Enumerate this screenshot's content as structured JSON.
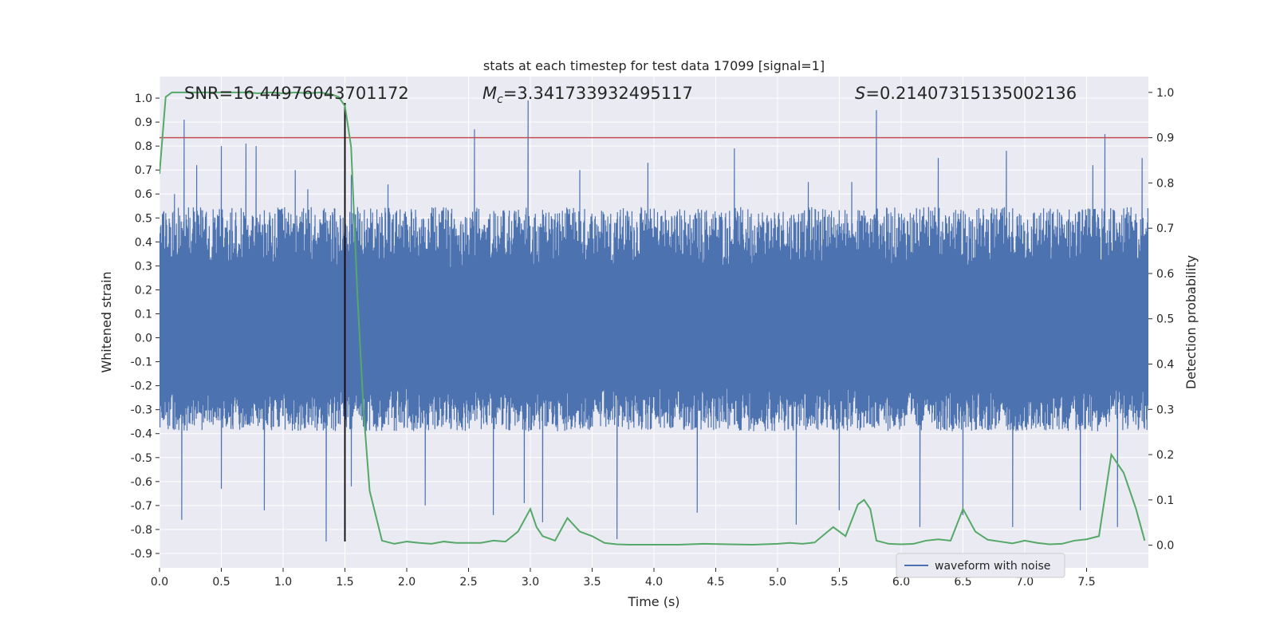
{
  "chart_data": {
    "type": "line",
    "title": "stats at each timestep for test data 17099 [signal=1]",
    "xlabel": "Time (s)",
    "ylabel": "Whitened strain",
    "y2label": "Detection probability",
    "xlim": [
      0.0,
      8.0
    ],
    "ylim": [
      -0.96,
      1.09
    ],
    "y2lim": [
      -0.05,
      1.035
    ],
    "xticks": [
      "0.0",
      "0.5",
      "1.0",
      "1.5",
      "2.0",
      "2.5",
      "3.0",
      "3.5",
      "4.0",
      "4.5",
      "5.0",
      "5.5",
      "6.0",
      "6.5",
      "7.0",
      "7.5"
    ],
    "xtick_values": [
      0.0,
      0.5,
      1.0,
      1.5,
      2.0,
      2.5,
      3.0,
      3.5,
      4.0,
      4.5,
      5.0,
      5.5,
      6.0,
      6.5,
      7.0,
      7.5
    ],
    "yticks": [
      "1.0",
      "0.9",
      "0.8",
      "0.7",
      "0.6",
      "0.5",
      "0.4",
      "0.3",
      "0.2",
      "0.1",
      "0.0",
      "-0.1",
      "-0.2",
      "-0.3",
      "-0.4",
      "-0.5",
      "-0.6",
      "-0.7",
      "-0.8",
      "-0.9"
    ],
    "ytick_values": [
      1.0,
      0.9,
      0.8,
      0.7,
      0.6,
      0.5,
      0.4,
      0.3,
      0.2,
      0.1,
      0.0,
      -0.1,
      -0.2,
      -0.3,
      -0.4,
      -0.5,
      -0.6,
      -0.7,
      -0.8,
      -0.9
    ],
    "y2ticks": [
      "1.0",
      "0.9",
      "0.8",
      "0.7",
      "0.6",
      "0.5",
      "0.4",
      "0.3",
      "0.2",
      "0.1",
      "0.0"
    ],
    "y2tick_values": [
      1.0,
      0.9,
      0.8,
      0.7,
      0.6,
      0.5,
      0.4,
      0.3,
      0.2,
      0.1,
      0.0
    ],
    "grid": true,
    "legend": {
      "placement": "lower-right",
      "entries": [
        "waveform with noise"
      ]
    },
    "annotations": {
      "snr": "SNR=16.44976043701172",
      "mc_symbol": "M",
      "mc_subscript": "c",
      "mc_value": "=3.341733932495117",
      "s_symbol": "S",
      "s_value": "=0.21407315135002136"
    },
    "threshold": {
      "value": 0.9,
      "axis": "y2",
      "color": "#c44e52"
    },
    "vline": {
      "x": 1.5,
      "ymin": -0.85,
      "ymax": 0.98,
      "color": "#000000"
    },
    "waveform": {
      "name": "waveform with noise",
      "color": "#4c72b0",
      "sample_count": 2048,
      "duration": 8.0,
      "typical_upper": 0.42,
      "typical_lower": -0.3,
      "spikes_up": [
        [
          0.05,
          0.52
        ],
        [
          0.12,
          0.6
        ],
        [
          0.2,
          0.91
        ],
        [
          0.3,
          0.72
        ],
        [
          0.5,
          0.8
        ],
        [
          0.7,
          0.81
        ],
        [
          0.78,
          0.8
        ],
        [
          1.1,
          0.7
        ],
        [
          1.2,
          0.62
        ],
        [
          1.55,
          0.68
        ],
        [
          1.85,
          0.64
        ],
        [
          2.55,
          0.87
        ],
        [
          2.98,
          0.99
        ],
        [
          3.4,
          0.7
        ],
        [
          3.95,
          0.73
        ],
        [
          4.65,
          0.79
        ],
        [
          5.25,
          0.65
        ],
        [
          5.6,
          0.65
        ],
        [
          5.8,
          0.95
        ],
        [
          6.3,
          0.75
        ],
        [
          6.85,
          0.78
        ],
        [
          7.55,
          0.72
        ],
        [
          7.65,
          0.85
        ],
        [
          7.95,
          0.75
        ]
      ],
      "spikes_down": [
        [
          0.18,
          -0.76
        ],
        [
          0.5,
          -0.63
        ],
        [
          0.85,
          -0.72
        ],
        [
          1.35,
          -0.85
        ],
        [
          1.55,
          -0.62
        ],
        [
          2.15,
          -0.7
        ],
        [
          2.7,
          -0.74
        ],
        [
          2.95,
          -0.69
        ],
        [
          3.1,
          -0.77
        ],
        [
          3.7,
          -0.84
        ],
        [
          4.35,
          -0.73
        ],
        [
          5.15,
          -0.78
        ],
        [
          5.5,
          -0.72
        ],
        [
          6.15,
          -0.79
        ],
        [
          6.5,
          -0.74
        ],
        [
          6.9,
          -0.79
        ],
        [
          7.45,
          -0.72
        ],
        [
          7.75,
          -0.79
        ]
      ]
    },
    "probability": {
      "name": "Detection probability",
      "color": "#55a868",
      "x": [
        0.0,
        0.05,
        0.1,
        0.2,
        0.3,
        0.4,
        0.5,
        0.6,
        0.7,
        0.8,
        0.9,
        1.0,
        1.1,
        1.2,
        1.3,
        1.4,
        1.45,
        1.5,
        1.55,
        1.6,
        1.65,
        1.7,
        1.8,
        1.9,
        2.0,
        2.1,
        2.2,
        2.3,
        2.4,
        2.5,
        2.6,
        2.7,
        2.8,
        2.9,
        3.0,
        3.05,
        3.1,
        3.2,
        3.3,
        3.4,
        3.5,
        3.6,
        3.7,
        3.8,
        4.0,
        4.2,
        4.4,
        4.6,
        4.8,
        5.0,
        5.1,
        5.2,
        5.3,
        5.45,
        5.55,
        5.65,
        5.7,
        5.75,
        5.8,
        5.9,
        6.0,
        6.1,
        6.2,
        6.3,
        6.4,
        6.5,
        6.6,
        6.7,
        6.8,
        6.9,
        7.0,
        7.1,
        7.2,
        7.3,
        7.4,
        7.5,
        7.6,
        7.7,
        7.8,
        7.9,
        7.97
      ],
      "y": [
        0.82,
        0.99,
        1.0,
        1.0,
        1.0,
        1.0,
        1.0,
        1.0,
        1.0,
        0.998,
        1.0,
        0.998,
        1.0,
        0.998,
        1.0,
        0.995,
        0.99,
        0.97,
        0.88,
        0.56,
        0.3,
        0.12,
        0.01,
        0.003,
        0.008,
        0.005,
        0.003,
        0.008,
        0.005,
        0.005,
        0.005,
        0.01,
        0.008,
        0.03,
        0.08,
        0.04,
        0.02,
        0.01,
        0.06,
        0.03,
        0.02,
        0.005,
        0.002,
        0.001,
        0.001,
        0.001,
        0.003,
        0.002,
        0.001,
        0.003,
        0.005,
        0.003,
        0.006,
        0.04,
        0.02,
        0.09,
        0.1,
        0.08,
        0.01,
        0.003,
        0.002,
        0.003,
        0.01,
        0.013,
        0.01,
        0.08,
        0.03,
        0.012,
        0.008,
        0.004,
        0.01,
        0.005,
        0.002,
        0.003,
        0.01,
        0.013,
        0.02,
        0.2,
        0.16,
        0.08,
        0.01
      ]
    }
  }
}
